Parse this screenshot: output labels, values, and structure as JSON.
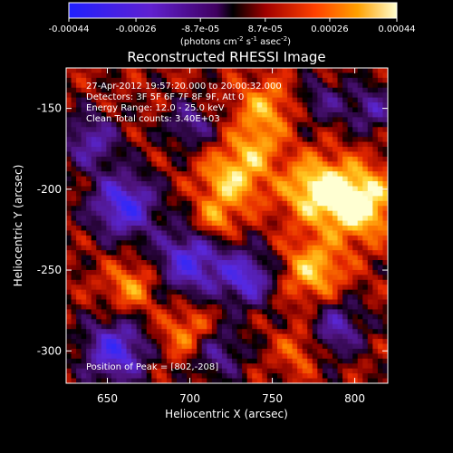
{
  "chart_data": {
    "type": "heatmap",
    "title": "Reconstructed RHESSI Image",
    "xlabel": "Heliocentric X (arcsec)",
    "ylabel": "Heliocentric Y (arcsec)",
    "xlim": [
      625,
      820
    ],
    "ylim": [
      -320,
      -125
    ],
    "x_ticks": [
      650,
      700,
      750,
      800
    ],
    "y_ticks": [
      -150,
      -200,
      -250,
      -300
    ],
    "colorbar": {
      "label_main": "(photons cm",
      "label_sup1": "-2",
      "label_mid": " s",
      "label_sup2": "-1",
      "label_end": " asec",
      "label_sup3": "-2",
      "label_close": ")",
      "ticks": [
        {
          "label": "-0.00044",
          "value": -0.00044
        },
        {
          "label": "-0.00026",
          "value": -0.00026
        },
        {
          "label": "-8.7e-05",
          "value": -8.7e-05
        },
        {
          "label": "8.7e-05",
          "value": 8.7e-05
        },
        {
          "label": "0.00026",
          "value": 0.00026
        },
        {
          "label": "0.00044",
          "value": 0.00044
        }
      ],
      "range": [
        -0.00044,
        0.00044
      ]
    },
    "annotations": {
      "time": "27-Apr-2012 19:57:20.000 to 20:00:32.000",
      "detectors": "Detectors: 3F 5F 6F 7F 8F 9F, Att 0",
      "energy": "Energy Range: 12.0 - 25.0 keV",
      "clean": "Clean     Total counts: 3.40E+03",
      "peak": "Position of Peak = [802,-208]"
    },
    "features": [
      {
        "x": 660,
        "y": -210,
        "v": -0.9,
        "s": 14
      },
      {
        "x": 655,
        "y": -300,
        "v": -0.85,
        "s": 14
      },
      {
        "x": 700,
        "y": -245,
        "v": -0.8,
        "s": 15
      },
      {
        "x": 735,
        "y": -255,
        "v": -0.75,
        "s": 12
      },
      {
        "x": 640,
        "y": -170,
        "v": -0.6,
        "s": 12
      },
      {
        "x": 700,
        "y": -160,
        "v": -0.5,
        "s": 10
      },
      {
        "x": 715,
        "y": -300,
        "v": -0.6,
        "s": 12
      },
      {
        "x": 790,
        "y": -285,
        "v": -0.55,
        "s": 12
      },
      {
        "x": 810,
        "y": -150,
        "v": -0.5,
        "s": 11
      },
      {
        "x": 775,
        "y": -300,
        "v": -0.45,
        "s": 10
      },
      {
        "x": 780,
        "y": -145,
        "v": -0.4,
        "s": 10
      },
      {
        "x": 802,
        "y": -208,
        "v": 1.0,
        "s": 15
      },
      {
        "x": 775,
        "y": -200,
        "v": 0.75,
        "s": 14
      },
      {
        "x": 725,
        "y": -195,
        "v": 0.7,
        "s": 13
      },
      {
        "x": 775,
        "y": -250,
        "v": 0.65,
        "s": 13
      },
      {
        "x": 770,
        "y": -300,
        "v": 0.7,
        "s": 10
      },
      {
        "x": 745,
        "y": -150,
        "v": 0.55,
        "s": 12
      },
      {
        "x": 700,
        "y": -290,
        "v": 0.55,
        "s": 12
      },
      {
        "x": 665,
        "y": -260,
        "v": 0.5,
        "s": 11
      },
      {
        "x": 740,
        "y": -175,
        "v": 0.45,
        "s": 10
      },
      {
        "x": 715,
        "y": -220,
        "v": 0.5,
        "s": 8
      }
    ]
  }
}
